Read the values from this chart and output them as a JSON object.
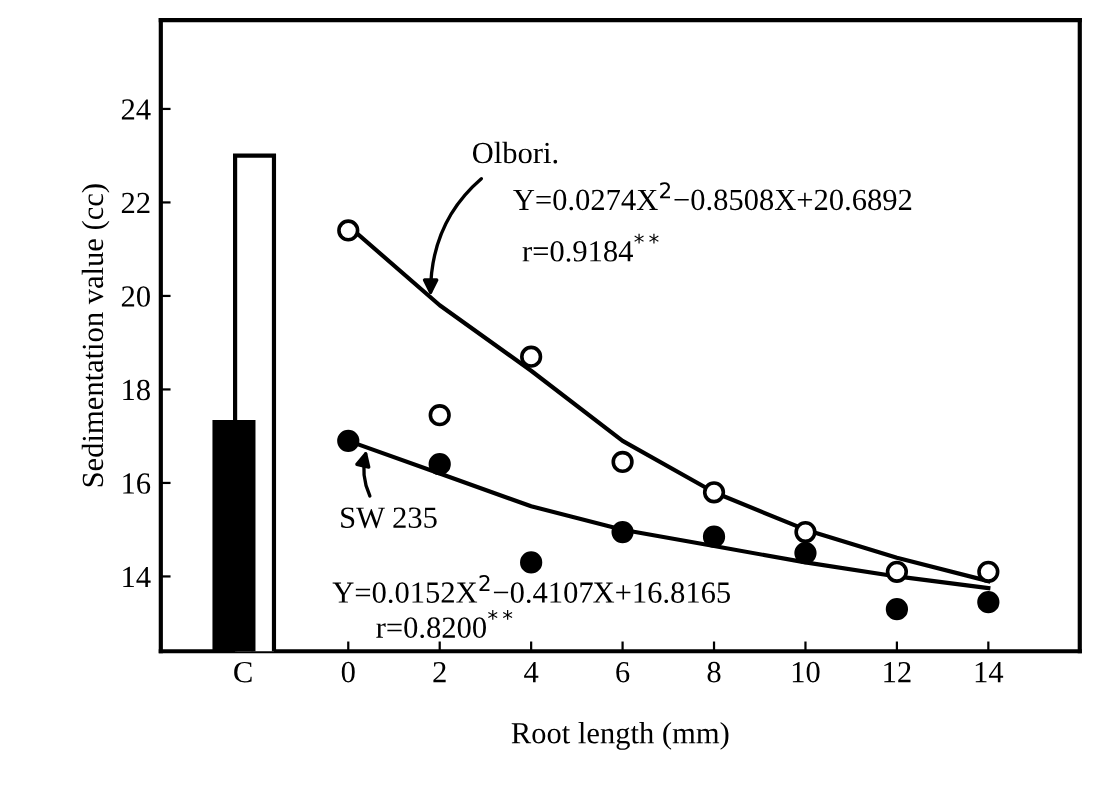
{
  "chart_data": {
    "type": "scatter",
    "xlabel": "Root length (mm)",
    "ylabel": "Sedimentation value (cc)",
    "xlim": [
      -4.1,
      16
    ],
    "ylim": [
      12.4,
      25.9
    ],
    "xticks": [
      {
        "value": -2.3,
        "label": "C"
      },
      0,
      2,
      4,
      6,
      8,
      10,
      12,
      14
    ],
    "yticks": [
      14,
      16,
      18,
      20,
      22,
      24
    ],
    "grid": false,
    "legend": false,
    "series": [
      {
        "type": "bar",
        "x": [
          -2.5
        ],
        "values": [
          17.3
        ],
        "color": "#000000"
      },
      {
        "type": "bar",
        "x": [
          -2.05
        ],
        "values": [
          23.0
        ],
        "color": "#ffffff"
      },
      {
        "marker": "circle",
        "x": [
          0,
          2,
          4,
          6,
          8,
          10,
          12,
          14
        ],
        "values": [
          21.4,
          17.45,
          18.7,
          16.45,
          15.8,
          14.95,
          14.1,
          14.1
        ],
        "color": "#ffffff"
      },
      {
        "marker": "circle",
        "x": [
          0,
          2,
          4,
          6,
          8,
          10,
          12,
          14
        ],
        "values": [
          16.9,
          16.4,
          14.3,
          14.95,
          14.85,
          14.5,
          13.3,
          13.45
        ],
        "color": "#000000"
      },
      {
        "type": "line",
        "x": [
          0,
          2,
          4,
          6,
          8,
          10,
          12,
          14
        ],
        "values": [
          21.5,
          19.8,
          18.4,
          16.9,
          15.8,
          15.0,
          14.4,
          13.9
        ],
        "color": "#000000"
      },
      {
        "type": "line",
        "x": [
          0,
          2,
          4,
          6,
          8,
          10,
          12,
          14
        ],
        "values": [
          16.9,
          16.2,
          15.5,
          15.0,
          14.65,
          14.3,
          14.0,
          13.75
        ],
        "color": "#000000"
      }
    ],
    "annotations": [
      {
        "text": "Olbori.",
        "x": 1.8,
        "y": 20.0
      },
      "Y=0.0274X$^{2}$−0.8508X+20.6892",
      "r=0.9184$^{**}$",
      {
        "text": "SW 235",
        "x": 0.4,
        "y": 16.7
      },
      "Y=0.0152X$^{2}$−0.4107X+16.8165",
      "r=0.8200$^{**}$"
    ]
  }
}
